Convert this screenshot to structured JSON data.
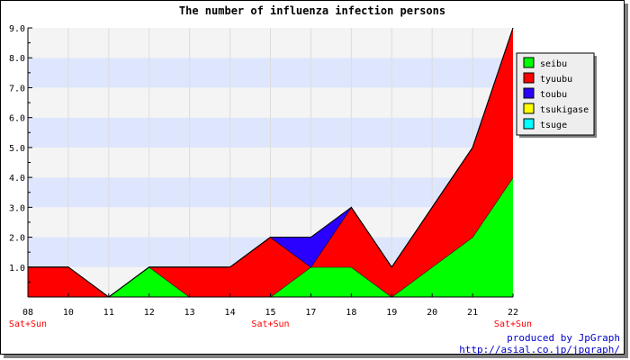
{
  "chart_data": {
    "type": "area",
    "title": "The number of influenza infection persons",
    "x_labels": [
      "08",
      "10",
      "11",
      "12",
      "13",
      "14",
      "15",
      "17",
      "18",
      "19",
      "20",
      "21",
      "22"
    ],
    "weekend_notes": [
      {
        "index": 0,
        "text": "Sat+Sun"
      },
      {
        "index": 6,
        "text": "Sat+Sun"
      },
      {
        "index": 12,
        "text": "Sat+Sun"
      }
    ],
    "stacked": true,
    "ylim": [
      0,
      9
    ],
    "y_ticks": [
      "1.0",
      "2.0",
      "3.0",
      "4.0",
      "5.0",
      "6.0",
      "7.0",
      "8.0",
      "9.0"
    ],
    "legend_position": "right",
    "series": [
      {
        "name": "seibu",
        "color": "#00ff00",
        "values": [
          0,
          0,
          0,
          1,
          0,
          0,
          0,
          1,
          1,
          0,
          1,
          2,
          4
        ]
      },
      {
        "name": "tyuubu",
        "color": "#ff0000",
        "values": [
          1,
          1,
          0,
          0,
          1,
          1,
          2,
          0,
          2,
          1,
          2,
          3,
          5
        ]
      },
      {
        "name": "toubu",
        "color": "#2a00ff",
        "values": [
          0,
          0,
          0,
          0,
          0,
          0,
          0,
          1,
          0,
          0,
          0,
          0,
          0
        ]
      },
      {
        "name": "tsukigase",
        "color": "#ffff00",
        "values": [
          0,
          0,
          0,
          0,
          0,
          0,
          0,
          0,
          0,
          0,
          0,
          0,
          0
        ]
      },
      {
        "name": "tsuge",
        "color": "#00ffff",
        "values": [
          0,
          0,
          0,
          0,
          0,
          0,
          0,
          0,
          0,
          0,
          0,
          0,
          0
        ]
      }
    ],
    "colors": {
      "axis_text": "#000000",
      "weekend_text": "#ff0000",
      "band_light": "#f4f4f4",
      "band_blue": "#dde6fc",
      "grid": "#dddddd"
    }
  },
  "footer": {
    "credit": "produced by JpGraph",
    "url": "http://asial.co.jp/jpgraph/"
  }
}
